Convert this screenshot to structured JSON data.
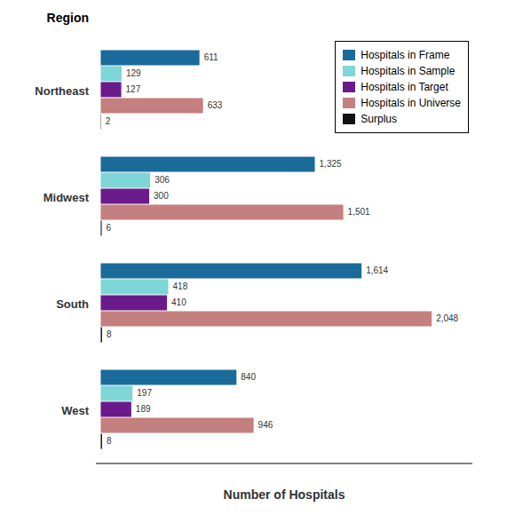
{
  "chart_data": {
    "type": "bar",
    "orientation": "horizontal",
    "title": "Region",
    "xlabel": "Number of Hospitals",
    "categories": [
      "Northeast",
      "Midwest",
      "South",
      "West"
    ],
    "series": [
      {
        "name": "Hospitals in Frame",
        "color": "#1a6b9a",
        "values": [
          611,
          1325,
          1614,
          840
        ],
        "value_labels": [
          "611",
          "1,325",
          "1,614",
          "840"
        ]
      },
      {
        "name": "Hospitals in Sample",
        "color": "#7fd6d6",
        "values": [
          129,
          306,
          418,
          197
        ],
        "value_labels": [
          "129",
          "306",
          "418",
          "197"
        ]
      },
      {
        "name": "Hospitals in Target",
        "color": "#6b1a8c",
        "values": [
          127,
          300,
          410,
          189
        ],
        "value_labels": [
          "127",
          "300",
          "410",
          "189"
        ]
      },
      {
        "name": "Hospitals in Universe",
        "color": "#c47f7f",
        "values": [
          633,
          1501,
          2048,
          946
        ],
        "value_labels": [
          "633",
          "1,501",
          "2,048",
          "946"
        ]
      },
      {
        "name": "Surplus",
        "color": "#111111",
        "values": [
          2,
          6,
          8,
          8
        ],
        "value_labels": [
          "2",
          "6",
          "8",
          "8"
        ]
      }
    ],
    "xlim": [
      -30,
      2300
    ],
    "tick_labels": "y",
    "data_labels": true,
    "legend": "upper right",
    "grid": false
  }
}
